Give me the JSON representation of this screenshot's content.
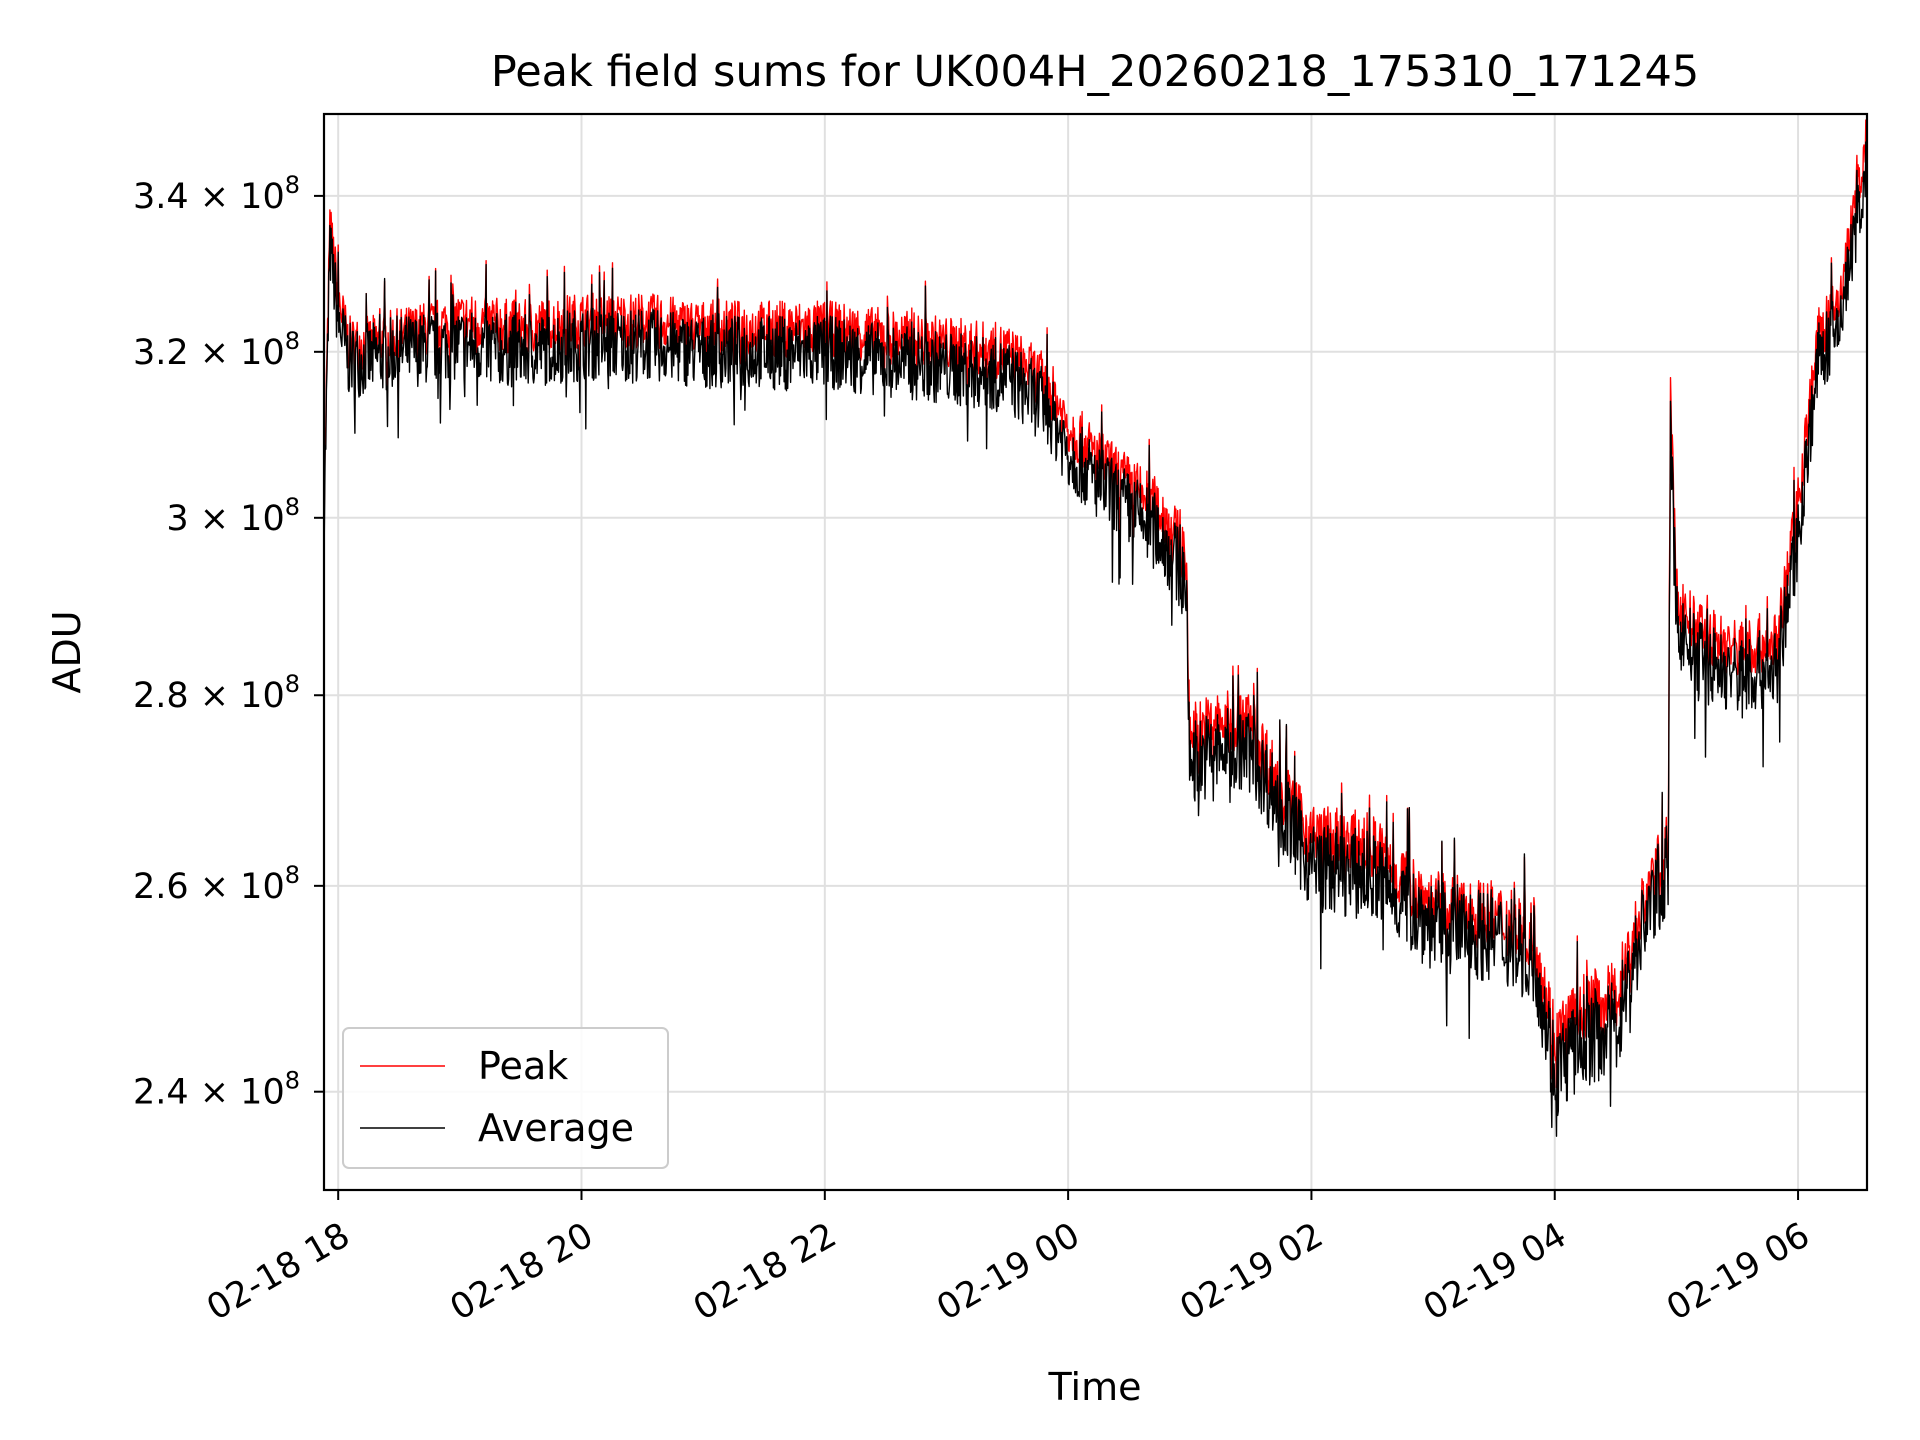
{
  "chart_data": {
    "type": "line",
    "title": "Peak field sums for UK004H_20260218_175310_171245",
    "xlabel": "Time",
    "ylabel": "ADU",
    "yscale": "log",
    "xlim": [
      "2026-02-18 17:53",
      "2026-02-19 06:34"
    ],
    "ylim": [
      231000000,
      351000000
    ],
    "x_ticks": [
      {
        "value": "2026-02-18 18:00",
        "label": "02-18 18"
      },
      {
        "value": "2026-02-18 20:00",
        "label": "02-18 20"
      },
      {
        "value": "2026-02-18 22:00",
        "label": "02-18 22"
      },
      {
        "value": "2026-02-19 00:00",
        "label": "02-19 00"
      },
      {
        "value": "2026-02-19 02:00",
        "label": "02-19 02"
      },
      {
        "value": "2026-02-19 04:00",
        "label": "02-19 04"
      },
      {
        "value": "2026-02-19 06:00",
        "label": "02-19 06"
      }
    ],
    "y_ticks": [
      {
        "value": 240000000,
        "mantissa": "2.4",
        "exponent": "8"
      },
      {
        "value": 260000000,
        "mantissa": "2.6",
        "exponent": "8"
      },
      {
        "value": 280000000,
        "mantissa": "2.8",
        "exponent": "8"
      },
      {
        "value": 300000000,
        "mantissa": "3",
        "exponent": "8"
      },
      {
        "value": 320000000,
        "mantissa": "3.2",
        "exponent": "8"
      },
      {
        "value": 340000000,
        "mantissa": "3.4",
        "exponent": "8"
      }
    ],
    "times_mult": "×",
    "times_base": "10",
    "grid": true,
    "legend_position": "lower-left",
    "series": [
      {
        "name": "Peak",
        "color": "#ff0000",
        "noise_amplitude": 3500000,
        "points": [
          [
            "2026-02-18 17:53",
            302000000
          ],
          [
            "2026-02-18 17:56",
            336000000
          ],
          [
            "2026-02-18 18:00",
            327000000
          ],
          [
            "2026-02-18 18:05",
            321000000
          ],
          [
            "2026-02-18 18:15",
            321000000
          ],
          [
            "2026-02-18 18:30",
            322000000
          ],
          [
            "2026-02-18 19:00",
            324000000
          ],
          [
            "2026-02-18 19:30",
            323000000
          ],
          [
            "2026-02-18 20:00",
            324000000
          ],
          [
            "2026-02-18 20:30",
            324000000
          ],
          [
            "2026-02-18 21:00",
            323000000
          ],
          [
            "2026-02-18 21:30",
            323000000
          ],
          [
            "2026-02-18 22:00",
            323000000
          ],
          [
            "2026-02-18 22:30",
            322000000
          ],
          [
            "2026-02-18 23:00",
            321000000
          ],
          [
            "2026-02-18 23:30",
            320000000
          ],
          [
            "2026-02-18 23:50",
            316000000
          ],
          [
            "2026-02-19 00:00",
            311000000
          ],
          [
            "2026-02-19 00:15",
            307000000
          ],
          [
            "2026-02-19 00:30",
            304000000
          ],
          [
            "2026-02-19 00:45",
            301000000
          ],
          [
            "2026-02-19 00:58",
            296000000
          ],
          [
            "2026-02-19 01:00",
            276000000
          ],
          [
            "2026-02-19 01:15",
            277000000
          ],
          [
            "2026-02-19 01:30",
            277000000
          ],
          [
            "2026-02-19 01:45",
            270000000
          ],
          [
            "2026-02-19 02:00",
            265000000
          ],
          [
            "2026-02-19 02:30",
            264000000
          ],
          [
            "2026-02-19 03:00",
            258000000
          ],
          [
            "2026-02-19 03:30",
            257000000
          ],
          [
            "2026-02-19 03:50",
            255000000
          ],
          [
            "2026-02-19 04:00",
            245000000
          ],
          [
            "2026-02-19 04:15",
            248000000
          ],
          [
            "2026-02-19 04:30",
            249000000
          ],
          [
            "2026-02-19 04:45",
            259000000
          ],
          [
            "2026-02-19 04:56",
            264000000
          ],
          [
            "2026-02-19 04:57",
            314000000
          ],
          [
            "2026-02-19 05:00",
            291000000
          ],
          [
            "2026-02-19 05:10",
            287000000
          ],
          [
            "2026-02-19 05:30",
            285000000
          ],
          [
            "2026-02-19 05:50",
            286000000
          ],
          [
            "2026-02-19 06:00",
            302000000
          ],
          [
            "2026-02-19 06:10",
            322000000
          ],
          [
            "2026-02-19 06:20",
            326000000
          ],
          [
            "2026-02-19 06:34",
            348000000
          ]
        ]
      },
      {
        "name": "Average",
        "color": "#000000",
        "noise_amplitude": 4000000,
        "points": [
          [
            "2026-02-18 17:53",
            300000000
          ],
          [
            "2026-02-18 17:56",
            333000000
          ],
          [
            "2026-02-18 18:00",
            324000000
          ],
          [
            "2026-02-18 18:05",
            319000000
          ],
          [
            "2026-02-18 18:15",
            319000000
          ],
          [
            "2026-02-18 18:30",
            320000000
          ],
          [
            "2026-02-18 19:00",
            321000000
          ],
          [
            "2026-02-18 19:30",
            320000000
          ],
          [
            "2026-02-18 20:00",
            321000000
          ],
          [
            "2026-02-18 20:30",
            321000000
          ],
          [
            "2026-02-18 21:00",
            320000000
          ],
          [
            "2026-02-18 21:30",
            320000000
          ],
          [
            "2026-02-18 22:00",
            320000000
          ],
          [
            "2026-02-18 22:30",
            319000000
          ],
          [
            "2026-02-18 23:00",
            318000000
          ],
          [
            "2026-02-18 23:30",
            317000000
          ],
          [
            "2026-02-18 23:50",
            313000000
          ],
          [
            "2026-02-19 00:00",
            308000000
          ],
          [
            "2026-02-19 00:15",
            304000000
          ],
          [
            "2026-02-19 00:30",
            301000000
          ],
          [
            "2026-02-19 00:45",
            298000000
          ],
          [
            "2026-02-19 00:58",
            293000000
          ],
          [
            "2026-02-19 01:00",
            273000000
          ],
          [
            "2026-02-19 01:15",
            274000000
          ],
          [
            "2026-02-19 01:30",
            274000000
          ],
          [
            "2026-02-19 01:45",
            268000000
          ],
          [
            "2026-02-19 02:00",
            262000000
          ],
          [
            "2026-02-19 02:30",
            261000000
          ],
          [
            "2026-02-19 03:00",
            256000000
          ],
          [
            "2026-02-19 03:30",
            255000000
          ],
          [
            "2026-02-19 03:50",
            253000000
          ],
          [
            "2026-02-19 04:00",
            242000000
          ],
          [
            "2026-02-19 04:15",
            245000000
          ],
          [
            "2026-02-19 04:30",
            246000000
          ],
          [
            "2026-02-19 04:45",
            257000000
          ],
          [
            "2026-02-19 04:56",
            262000000
          ],
          [
            "2026-02-19 04:57",
            310000000
          ],
          [
            "2026-02-19 05:00",
            288000000
          ],
          [
            "2026-02-19 05:10",
            284000000
          ],
          [
            "2026-02-19 05:30",
            282000000
          ],
          [
            "2026-02-19 05:50",
            283000000
          ],
          [
            "2026-02-19 06:00",
            298000000
          ],
          [
            "2026-02-19 06:10",
            319000000
          ],
          [
            "2026-02-19 06:20",
            323000000
          ],
          [
            "2026-02-19 06:34",
            344000000
          ]
        ]
      }
    ]
  }
}
